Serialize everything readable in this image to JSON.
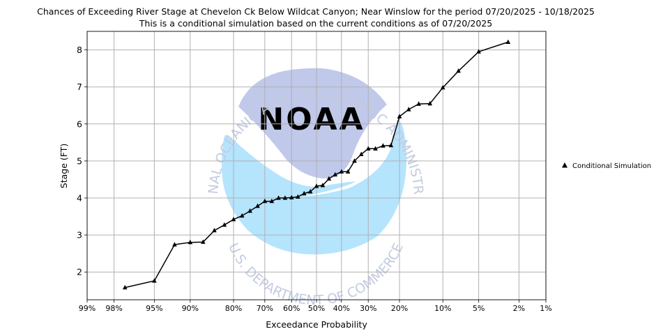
{
  "chart_data": {
    "type": "line",
    "title": "Chances of Exceeding River Stage at Chevelon Ck Below Wildcat Canyon; Near Winslow for the period 07/20/2025 - 10/18/2025",
    "subtitle": "This is a conditional simulation based on the current conditions as of 07/20/2025",
    "xlabel": "Exceedance Probability",
    "ylabel": "Stage (FT)",
    "x_scale": "normal-probability",
    "x_reversed": true,
    "xlim": [
      99,
      1
    ],
    "ylim": [
      1.25,
      8.5
    ],
    "grid": true,
    "legend_position": "right",
    "x_ticks": [
      {
        "value": 99,
        "label": "99%"
      },
      {
        "value": 98,
        "label": "98%"
      },
      {
        "value": 95,
        "label": "95%"
      },
      {
        "value": 90,
        "label": "90%"
      },
      {
        "value": 80,
        "label": "80%"
      },
      {
        "value": 70,
        "label": "70%"
      },
      {
        "value": 60,
        "label": "60%"
      },
      {
        "value": 50,
        "label": "50%"
      },
      {
        "value": 40,
        "label": "40%"
      },
      {
        "value": 30,
        "label": "30%"
      },
      {
        "value": 20,
        "label": "20%"
      },
      {
        "value": 10,
        "label": "10%"
      },
      {
        "value": 5,
        "label": "5%"
      },
      {
        "value": 2,
        "label": "2%"
      },
      {
        "value": 1,
        "label": "1%"
      }
    ],
    "y_ticks": [
      {
        "value": 2,
        "label": "2"
      },
      {
        "value": 3,
        "label": "3"
      },
      {
        "value": 4,
        "label": "4"
      },
      {
        "value": 5,
        "label": "5"
      },
      {
        "value": 6,
        "label": "6"
      },
      {
        "value": 7,
        "label": "7"
      },
      {
        "value": 8,
        "label": "8"
      }
    ],
    "series": [
      {
        "name": "Conditional Simulation",
        "color": "#000000",
        "marker": "triangle",
        "points": [
          {
            "x": 97.4,
            "y": 1.58
          },
          {
            "x": 95.0,
            "y": 1.76
          },
          {
            "x": 92.5,
            "y": 2.74
          },
          {
            "x": 90.0,
            "y": 2.8
          },
          {
            "x": 87.5,
            "y": 2.81
          },
          {
            "x": 85.0,
            "y": 3.12
          },
          {
            "x": 82.5,
            "y": 3.27
          },
          {
            "x": 80.0,
            "y": 3.42
          },
          {
            "x": 77.5,
            "y": 3.52
          },
          {
            "x": 75.0,
            "y": 3.65
          },
          {
            "x": 72.5,
            "y": 3.78
          },
          {
            "x": 70.0,
            "y": 3.91
          },
          {
            "x": 67.5,
            "y": 3.91
          },
          {
            "x": 65.0,
            "y": 4.0
          },
          {
            "x": 62.5,
            "y": 4.0
          },
          {
            "x": 60.0,
            "y": 4.01
          },
          {
            "x": 57.5,
            "y": 4.03
          },
          {
            "x": 55.0,
            "y": 4.12
          },
          {
            "x": 52.5,
            "y": 4.17
          },
          {
            "x": 50.0,
            "y": 4.32
          },
          {
            "x": 47.5,
            "y": 4.34
          },
          {
            "x": 45.0,
            "y": 4.52
          },
          {
            "x": 42.5,
            "y": 4.63
          },
          {
            "x": 40.0,
            "y": 4.71
          },
          {
            "x": 37.5,
            "y": 4.71
          },
          {
            "x": 35.0,
            "y": 5.0
          },
          {
            "x": 32.5,
            "y": 5.18
          },
          {
            "x": 30.0,
            "y": 5.33
          },
          {
            "x": 27.5,
            "y": 5.33
          },
          {
            "x": 25.0,
            "y": 5.41
          },
          {
            "x": 22.5,
            "y": 5.42
          },
          {
            "x": 20.0,
            "y": 6.2
          },
          {
            "x": 17.5,
            "y": 6.39
          },
          {
            "x": 15.0,
            "y": 6.54
          },
          {
            "x": 12.5,
            "y": 6.55
          },
          {
            "x": 10.0,
            "y": 6.98
          },
          {
            "x": 7.5,
            "y": 7.43
          },
          {
            "x": 5.0,
            "y": 7.95
          },
          {
            "x": 2.6,
            "y": 8.21
          }
        ]
      }
    ]
  },
  "watermark": {
    "arc_top_text": "NATIONAL OCEANIC AND ATMOSPHERIC ADMINISTRATION",
    "arc_bottom_text": "U.S. DEPARTMENT OF COMMERCE",
    "center_text": "NOAA",
    "colors": {
      "upper": "#c0c9ea",
      "lower": "#b5e4fd",
      "text": "#c3cbe0"
    }
  }
}
